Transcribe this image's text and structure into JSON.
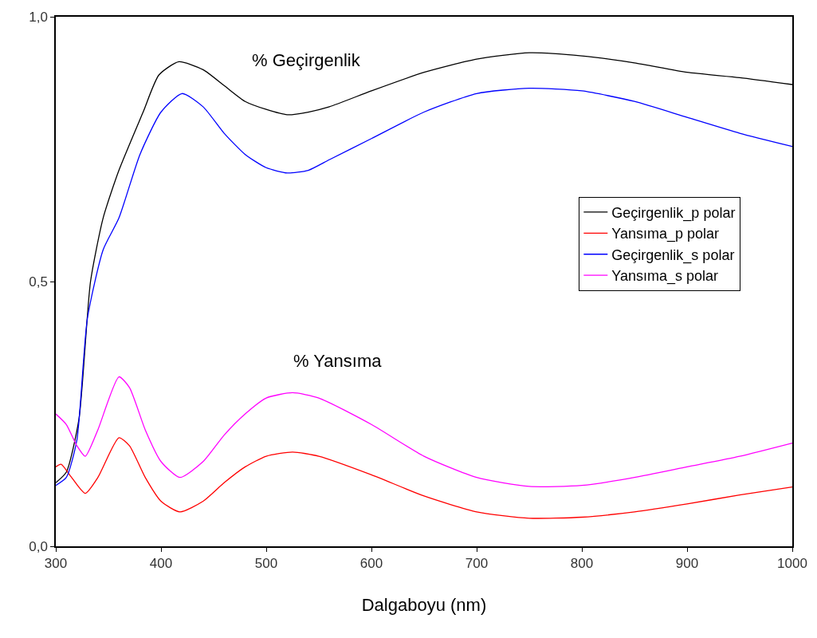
{
  "chart_data": {
    "type": "line",
    "xlabel": "Dalgaboyu (nm)",
    "xlim": [
      300,
      1000
    ],
    "xticks": [
      300,
      400,
      500,
      600,
      700,
      800,
      900,
      1000
    ],
    "ylim": [
      0,
      1
    ],
    "yticks": [
      {
        "value": 0,
        "label": "0,0"
      },
      {
        "value": 0.5,
        "label": "0,5"
      },
      {
        "value": 1,
        "label": "1,0"
      }
    ],
    "legend": "right",
    "marker": "none",
    "line_style": "solid",
    "annotations": [
      "% Geçirgenlik",
      "% Yansıma"
    ],
    "series": [
      {
        "name": "Geçirgenlik_p polar",
        "color": "#000000",
        "x": [
          300,
          310,
          322,
          333,
          345,
          360,
          383,
          398,
          417,
          440,
          460,
          480,
          500,
          520,
          540,
          560,
          600,
          650,
          700,
          750,
          800,
          850,
          900,
          950,
          1000
        ],
        "values": [
          0.12,
          0.14,
          0.24,
          0.5,
          0.62,
          0.71,
          0.82,
          0.89,
          0.915,
          0.9,
          0.87,
          0.84,
          0.825,
          0.815,
          0.82,
          0.83,
          0.86,
          0.895,
          0.92,
          0.932,
          0.926,
          0.913,
          0.895,
          0.885,
          0.872
        ]
      },
      {
        "name": "Yansıma_p polar",
        "color": "#ff0000",
        "x": [
          300,
          305,
          315,
          328,
          340,
          360,
          370,
          385,
          400,
          418,
          440,
          460,
          480,
          500,
          525,
          550,
          600,
          650,
          700,
          750,
          800,
          850,
          900,
          950,
          1000
        ],
        "values": [
          0.15,
          0.155,
          0.13,
          0.1,
          0.13,
          0.205,
          0.19,
          0.13,
          0.085,
          0.065,
          0.085,
          0.12,
          0.15,
          0.17,
          0.178,
          0.17,
          0.135,
          0.095,
          0.065,
          0.053,
          0.055,
          0.065,
          0.08,
          0.097,
          0.112
        ]
      },
      {
        "name": "Geçirgenlik_s polar",
        "color": "#0000ff",
        "x": [
          300,
          310,
          320,
          330,
          345,
          360,
          380,
          400,
          420,
          440,
          460,
          480,
          500,
          520,
          540,
          560,
          600,
          650,
          700,
          750,
          800,
          850,
          900,
          950,
          1000
        ],
        "values": [
          0.115,
          0.13,
          0.2,
          0.43,
          0.56,
          0.62,
          0.74,
          0.82,
          0.855,
          0.83,
          0.78,
          0.74,
          0.715,
          0.705,
          0.71,
          0.73,
          0.77,
          0.82,
          0.855,
          0.865,
          0.86,
          0.84,
          0.81,
          0.78,
          0.755
        ]
      },
      {
        "name": "Yansıma_s polar",
        "color": "#ff00ff",
        "x": [
          300,
          310,
          320,
          328,
          340,
          360,
          370,
          385,
          400,
          418,
          440,
          460,
          480,
          500,
          525,
          550,
          600,
          650,
          700,
          750,
          800,
          850,
          900,
          950,
          1000
        ],
        "values": [
          0.25,
          0.23,
          0.19,
          0.17,
          0.22,
          0.32,
          0.3,
          0.22,
          0.16,
          0.13,
          0.16,
          0.21,
          0.25,
          0.28,
          0.29,
          0.28,
          0.23,
          0.17,
          0.13,
          0.113,
          0.115,
          0.13,
          0.15,
          0.17,
          0.195
        ]
      }
    ]
  }
}
